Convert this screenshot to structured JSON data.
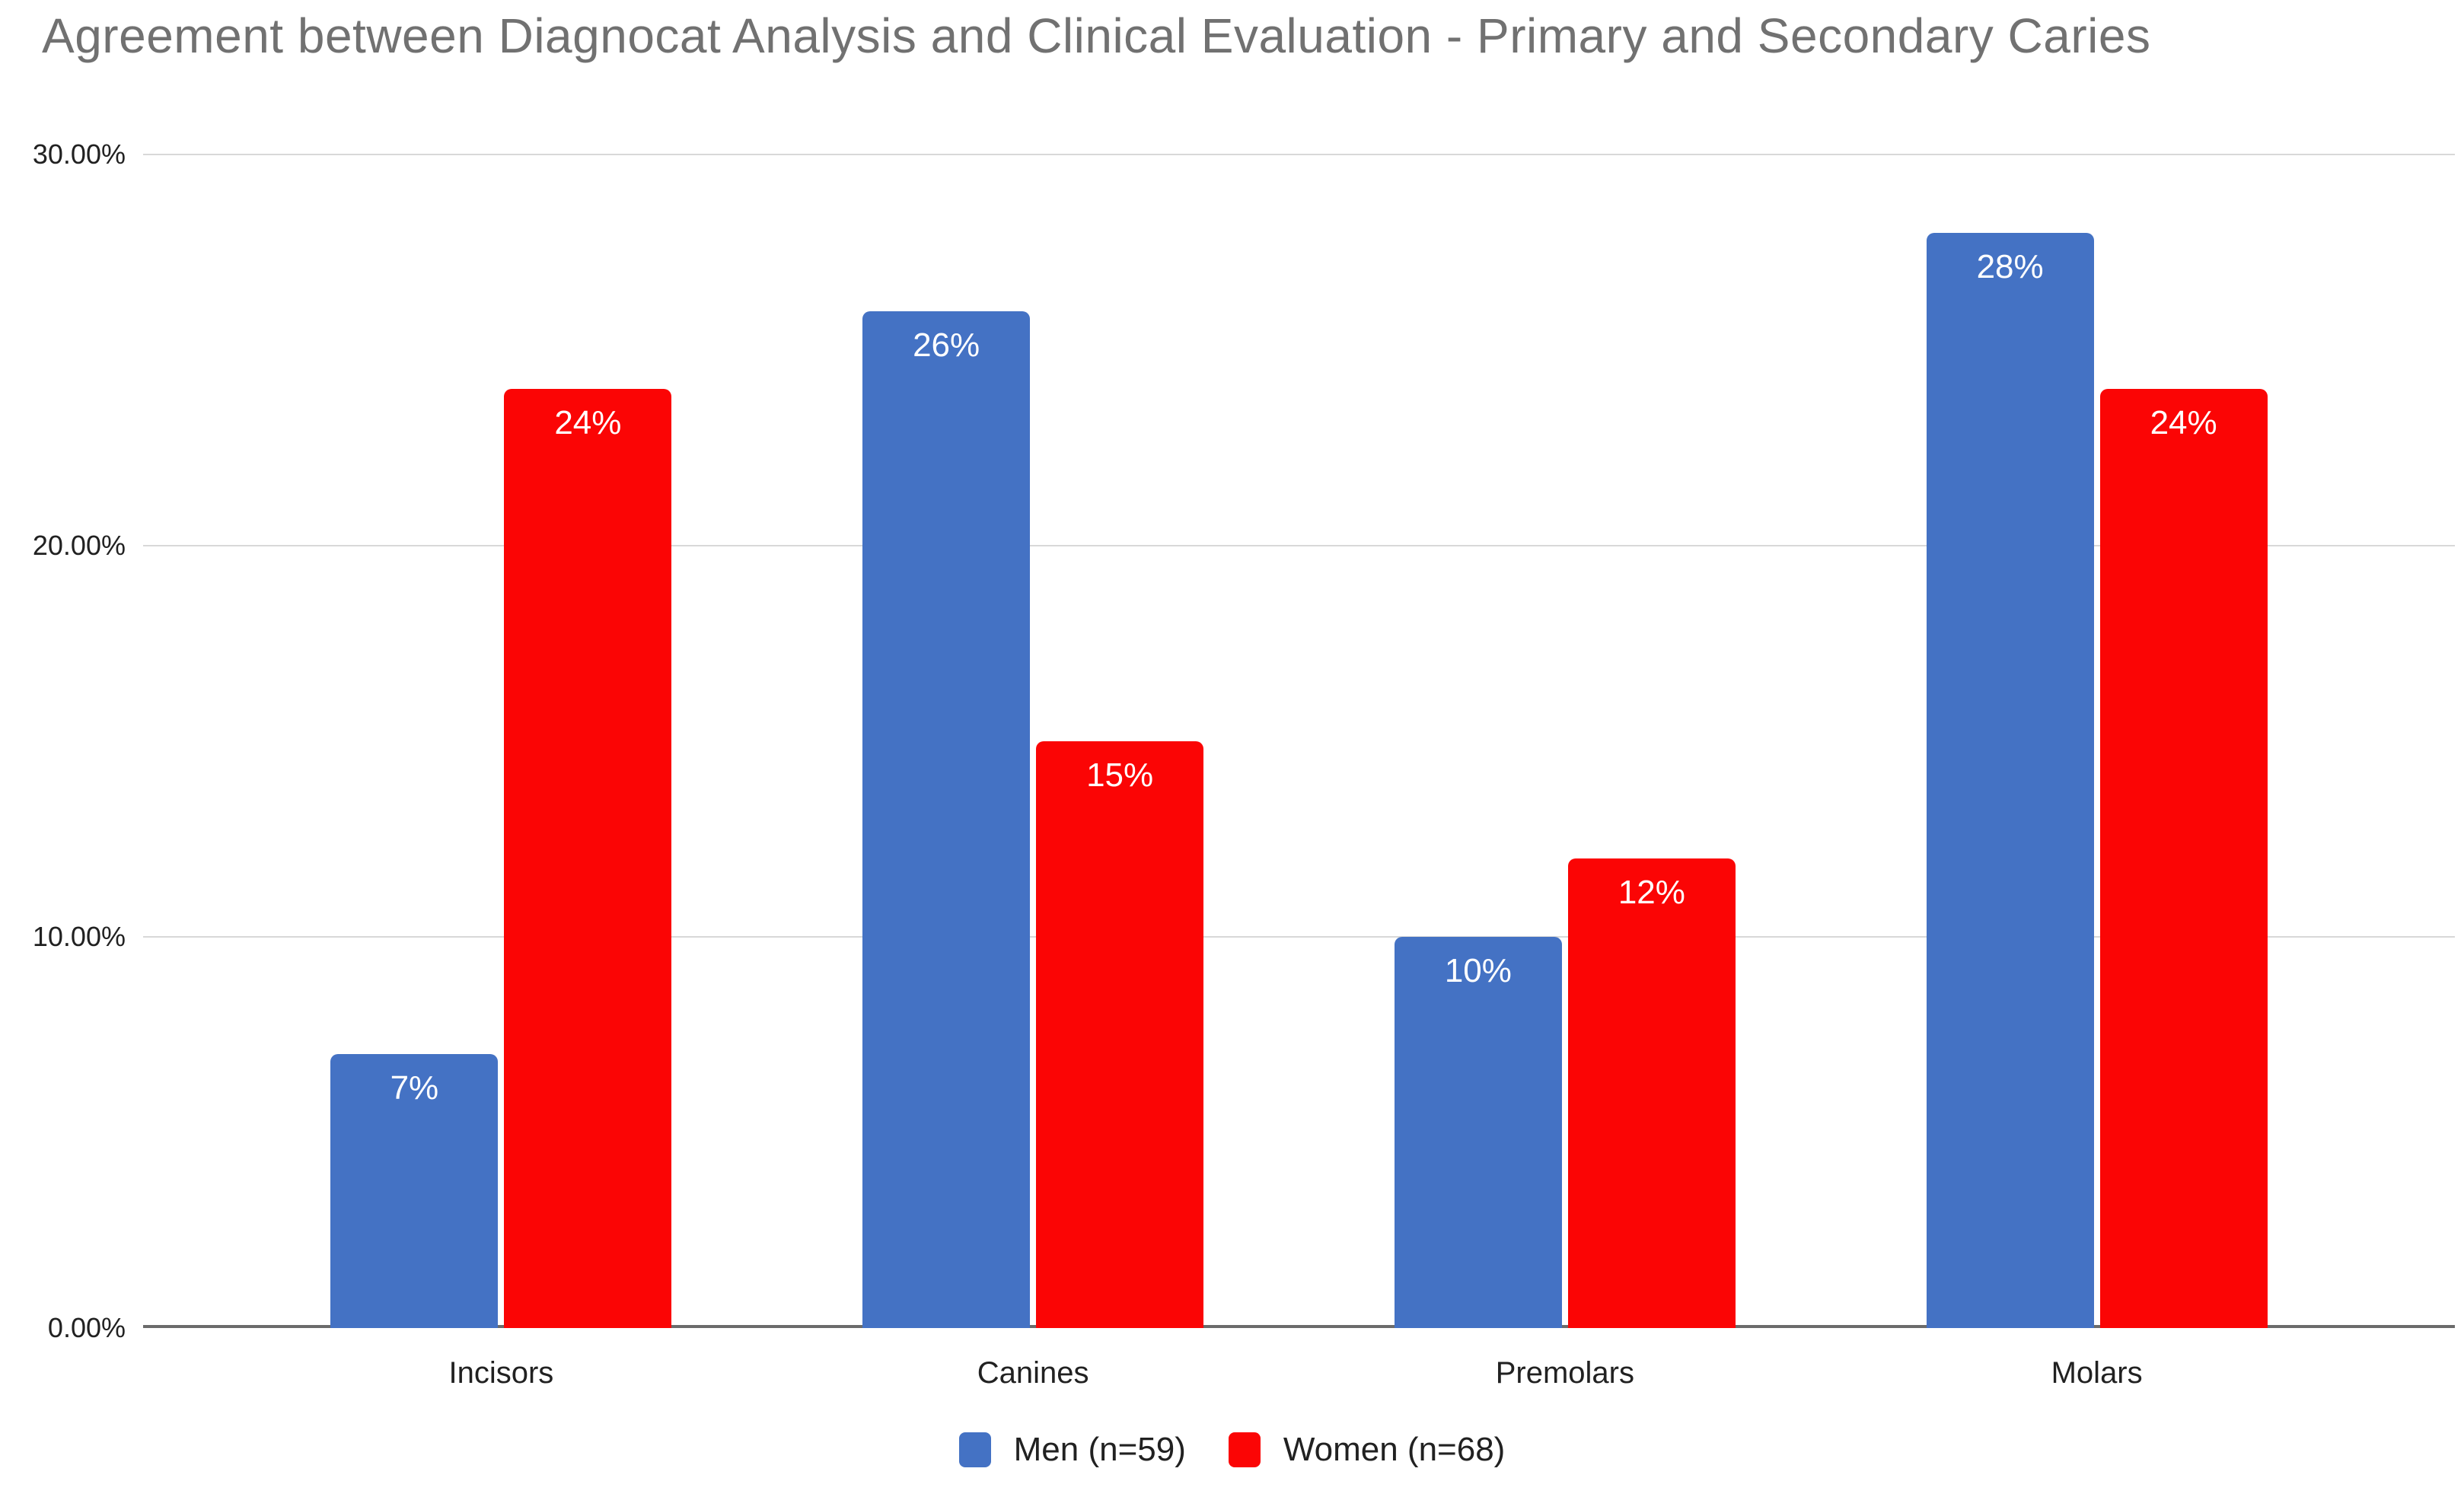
{
  "chart_data": {
    "type": "bar",
    "title": "Agreement between Diagnocat Analysis and Clinical Evaluation - Primary and Secondary Caries",
    "categories": [
      "Incisors",
      "Canines",
      "Premolars",
      "Molars"
    ],
    "series": [
      {
        "name": "Men (n=59)",
        "color": "#4472C4",
        "values": [
          7,
          26,
          10,
          28
        ],
        "labels": [
          "7%",
          "26%",
          "10%",
          "28%"
        ]
      },
      {
        "name": "Women (n=68)",
        "color": "#FB0505",
        "values": [
          24,
          15,
          12,
          24
        ],
        "labels": [
          "24%",
          "15%",
          "12%",
          "24%"
        ]
      }
    ],
    "xlabel": "",
    "ylabel": "",
    "ylim": [
      0,
      30
    ],
    "y_ticks": [
      "30.00%",
      "20.00%",
      "10.00%",
      "0.00%"
    ],
    "y_tick_interval": 10,
    "grid": true,
    "legend_position": "bottom",
    "data_label_position": "inside-top"
  },
  "style": {
    "background_color": "#FFFFFF",
    "title_color": "#717171",
    "tick_label_color": "#212121",
    "category_label_color": "#212121",
    "legend_label_color": "#212121",
    "gridline_color": "#D8D8D8",
    "axis_line_color": "#6B6B6B",
    "bar_label_color": "#FFFFFF"
  }
}
